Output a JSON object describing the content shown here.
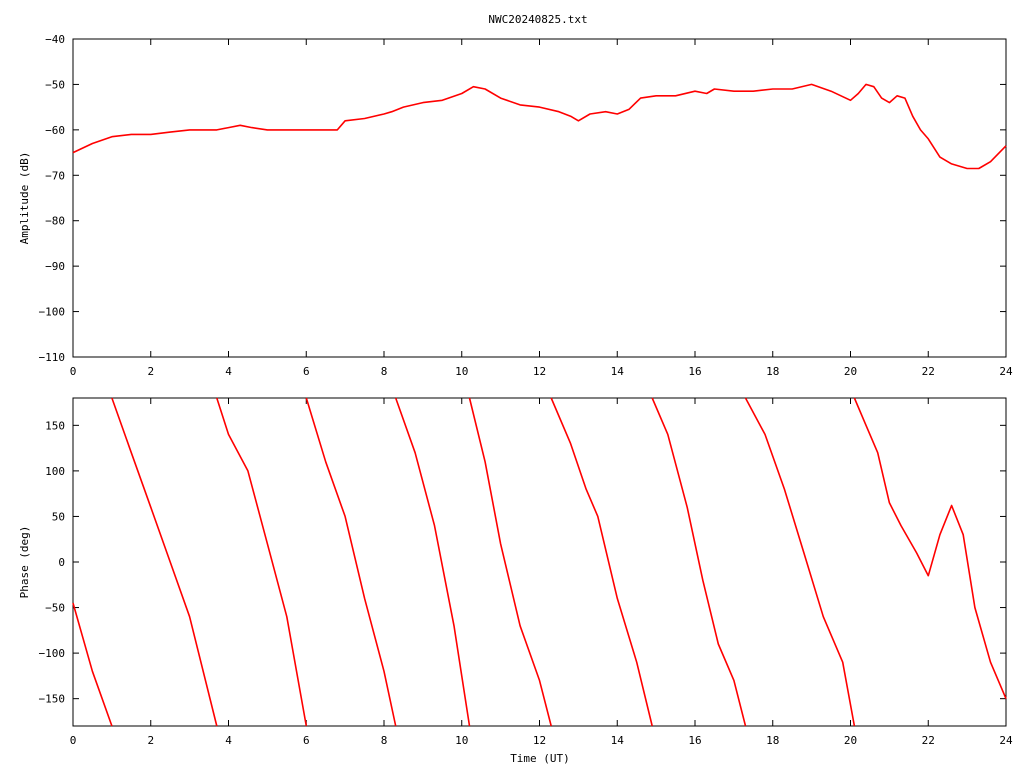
{
  "title": "NWC20240825.txt",
  "colors": {
    "series": "#ff0000",
    "axis": "#000000",
    "background": "#ffffff"
  },
  "chart_data": [
    {
      "type": "line",
      "ylabel": "Amplitude (dB)",
      "xlabel": "",
      "xlim": [
        0,
        24
      ],
      "ylim": [
        -110,
        -40
      ],
      "xticks": [
        0,
        2,
        4,
        6,
        8,
        10,
        12,
        14,
        16,
        18,
        20,
        22,
        24
      ],
      "yticks": [
        -110,
        -100,
        -90,
        -80,
        -70,
        -60,
        -50,
        -40
      ],
      "grid": false,
      "series": [
        {
          "x": [
            0,
            0.5,
            1,
            1.5,
            2,
            2.5,
            3,
            3.5,
            3.7,
            4,
            4.3,
            4.6,
            5,
            5.5,
            6,
            6.5,
            6.8,
            7,
            7.5,
            8,
            8.2,
            8.5,
            9,
            9.5,
            10,
            10.3,
            10.6,
            11,
            11.5,
            12,
            12.5,
            12.8,
            13,
            13.3,
            13.7,
            14,
            14.3,
            14.6,
            15,
            15.5,
            16,
            16.3,
            16.5,
            17,
            17.5,
            18,
            18.5,
            19,
            19.5,
            20,
            20.2,
            20.4,
            20.6,
            20.8,
            21,
            21.2,
            21.4,
            21.6,
            21.8,
            22,
            22.3,
            22.6,
            23,
            23.3,
            23.6,
            24
          ],
          "values": [
            -65,
            -63,
            -61.5,
            -61,
            -61,
            -60.5,
            -60,
            -60,
            -60,
            -59.5,
            -59,
            -59.5,
            -60,
            -60,
            -60,
            -60,
            -60,
            -58,
            -57.5,
            -56.5,
            -56,
            -55,
            -54,
            -53.5,
            -52,
            -50.5,
            -51,
            -53,
            -54.5,
            -55,
            -56,
            -57,
            -58,
            -56.5,
            -56,
            -56.5,
            -55.5,
            -53,
            -52.5,
            -52.5,
            -51.5,
            -52,
            -51,
            -51.5,
            -51.5,
            -51,
            -51,
            -50,
            -51.5,
            -53.5,
            -52,
            -50,
            -50.5,
            -53,
            -54,
            -52.5,
            -53,
            -57,
            -60,
            -62,
            -66,
            -67.5,
            -68.5,
            -68.5,
            -67,
            -63.5
          ]
        }
      ]
    },
    {
      "type": "line",
      "ylabel": "Phase (deg)",
      "xlabel": "Time (UT)",
      "xlim": [
        0,
        24
      ],
      "ylim": [
        -180,
        180
      ],
      "xticks": [
        0,
        2,
        4,
        6,
        8,
        10,
        12,
        14,
        16,
        18,
        20,
        22,
        24
      ],
      "yticks": [
        -150,
        -100,
        -50,
        0,
        50,
        100,
        150
      ],
      "grid": false,
      "series": [
        {
          "segments": [
            {
              "x": [
                0,
                0.5,
                1.0
              ],
              "values": [
                -45,
                -120,
                -180
              ]
            },
            {
              "x": [
                1.0,
                1.5,
                2.0,
                2.5,
                3.0,
                3.7
              ],
              "values": [
                180,
                120,
                60,
                0,
                -60,
                -180
              ]
            },
            {
              "x": [
                3.7,
                4.0,
                4.5,
                5.0,
                5.5,
                6.0
              ],
              "values": [
                180,
                140,
                100,
                20,
                -60,
                -180
              ]
            },
            {
              "x": [
                6.0,
                6.5,
                7.0,
                7.5,
                8.0,
                8.3
              ],
              "values": [
                180,
                110,
                50,
                -40,
                -120,
                -180
              ]
            },
            {
              "x": [
                8.3,
                8.8,
                9.3,
                9.8,
                10.2
              ],
              "values": [
                180,
                120,
                40,
                -70,
                -180
              ]
            },
            {
              "x": [
                10.2,
                10.6,
                11.0,
                11.5,
                12.0,
                12.3
              ],
              "values": [
                180,
                110,
                20,
                -70,
                -130,
                -180
              ]
            },
            {
              "x": [
                12.3,
                12.8,
                13.2,
                13.5,
                14.0,
                14.5,
                14.9
              ],
              "values": [
                180,
                130,
                80,
                50,
                -40,
                -110,
                -180
              ]
            },
            {
              "x": [
                14.9,
                15.3,
                15.8,
                16.2,
                16.6,
                17.0,
                17.3
              ],
              "values": [
                180,
                140,
                60,
                -20,
                -90,
                -130,
                -180
              ]
            },
            {
              "x": [
                17.3,
                17.8,
                18.3,
                18.8,
                19.3,
                19.8,
                20.1
              ],
              "values": [
                180,
                140,
                80,
                10,
                -60,
                -110,
                -180
              ]
            },
            {
              "x": [
                20.1,
                20.4,
                20.7,
                21.0,
                21.3,
                21.7,
                22.0,
                22.3,
                22.6,
                22.9,
                23.2,
                23.6,
                24.0
              ],
              "values": [
                180,
                150,
                120,
                65,
                40,
                10,
                -15,
                30,
                62,
                30,
                -50,
                -110,
                -150
              ]
            }
          ]
        }
      ]
    }
  ]
}
